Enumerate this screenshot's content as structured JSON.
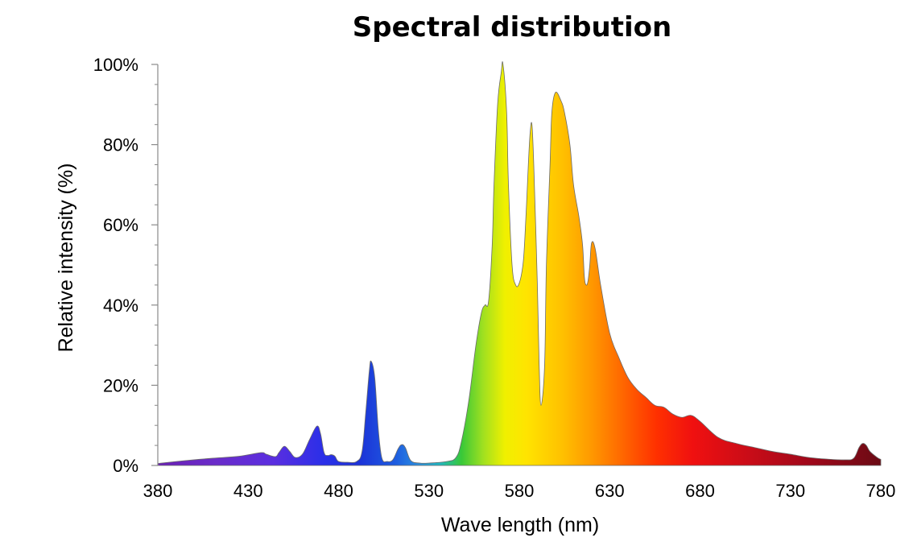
{
  "chart_data": {
    "type": "area",
    "title": "Spectral distribution",
    "xlabel": "Wave length (nm)",
    "ylabel": "Relative intensity (%)",
    "xlim": [
      380,
      780
    ],
    "ylim": [
      0,
      100
    ],
    "x_ticks": [
      "380",
      "430",
      "480",
      "530",
      "580",
      "630",
      "680",
      "730",
      "780"
    ],
    "y_ticks": [
      "0%",
      "20%",
      "40%",
      "60%",
      "80%",
      "100%"
    ],
    "grid": false,
    "fill": "visible-spectrum gradient",
    "series": [
      {
        "x": [
          380,
          395,
          410,
          425,
          437,
          440,
          445,
          447,
          450,
          453,
          456,
          460,
          464,
          468,
          470,
          472,
          474,
          476,
          478,
          480,
          485,
          490,
          493,
          495,
          497,
          498,
          500,
          502,
          504,
          507,
          510,
          513,
          515,
          517,
          520,
          525,
          530,
          540,
          545,
          548,
          552,
          556,
          559,
          561,
          563,
          565,
          566,
          568,
          570,
          571,
          573,
          574,
          576,
          578,
          580,
          582,
          583,
          584,
          585,
          586,
          587,
          588,
          590,
          591,
          592,
          594,
          595,
          597,
          598,
          600,
          603,
          605,
          608,
          610,
          613,
          615,
          616,
          617,
          618,
          619,
          620,
          622,
          625,
          630,
          635,
          640,
          645,
          650,
          655,
          660,
          665,
          670,
          675,
          680,
          690,
          700,
          710,
          720,
          730,
          740,
          750,
          760,
          765,
          768,
          770,
          772,
          774,
          778,
          780
        ],
        "y": [
          0.5,
          1.2,
          1.8,
          2.3,
          3.2,
          2.8,
          2.2,
          3.2,
          4.8,
          3.5,
          2.0,
          2.8,
          6.5,
          9.8,
          8.0,
          3.2,
          2.5,
          2.7,
          2.3,
          1.0,
          0.8,
          1.0,
          3.5,
          13.0,
          23.5,
          26.0,
          22.0,
          9.0,
          1.8,
          1.0,
          1.4,
          4.2,
          5.2,
          4.4,
          1.2,
          0.6,
          0.6,
          1.0,
          2.0,
          6.0,
          16.0,
          30.0,
          38.0,
          40.0,
          41.0,
          55.0,
          70.0,
          90.0,
          98.0,
          100.0,
          88.0,
          70.0,
          50.0,
          45.0,
          45.5,
          50.0,
          56.0,
          65.0,
          75.0,
          83.0,
          85.0,
          75.0,
          45.0,
          25.0,
          15.0,
          25.0,
          50.0,
          75.0,
          88.0,
          93.0,
          91.0,
          88.0,
          80.0,
          70.0,
          62.0,
          55.0,
          47.0,
          45.0,
          46.0,
          50.0,
          55.5,
          54.0,
          45.0,
          33.0,
          27.0,
          22.0,
          19.0,
          17.0,
          15.0,
          14.5,
          12.8,
          12.0,
          12.5,
          11.0,
          7.0,
          5.5,
          4.5,
          3.5,
          2.8,
          2.0,
          1.6,
          1.4,
          1.8,
          4.5,
          5.5,
          5.0,
          3.5,
          2.0,
          1.5
        ]
      }
    ]
  }
}
